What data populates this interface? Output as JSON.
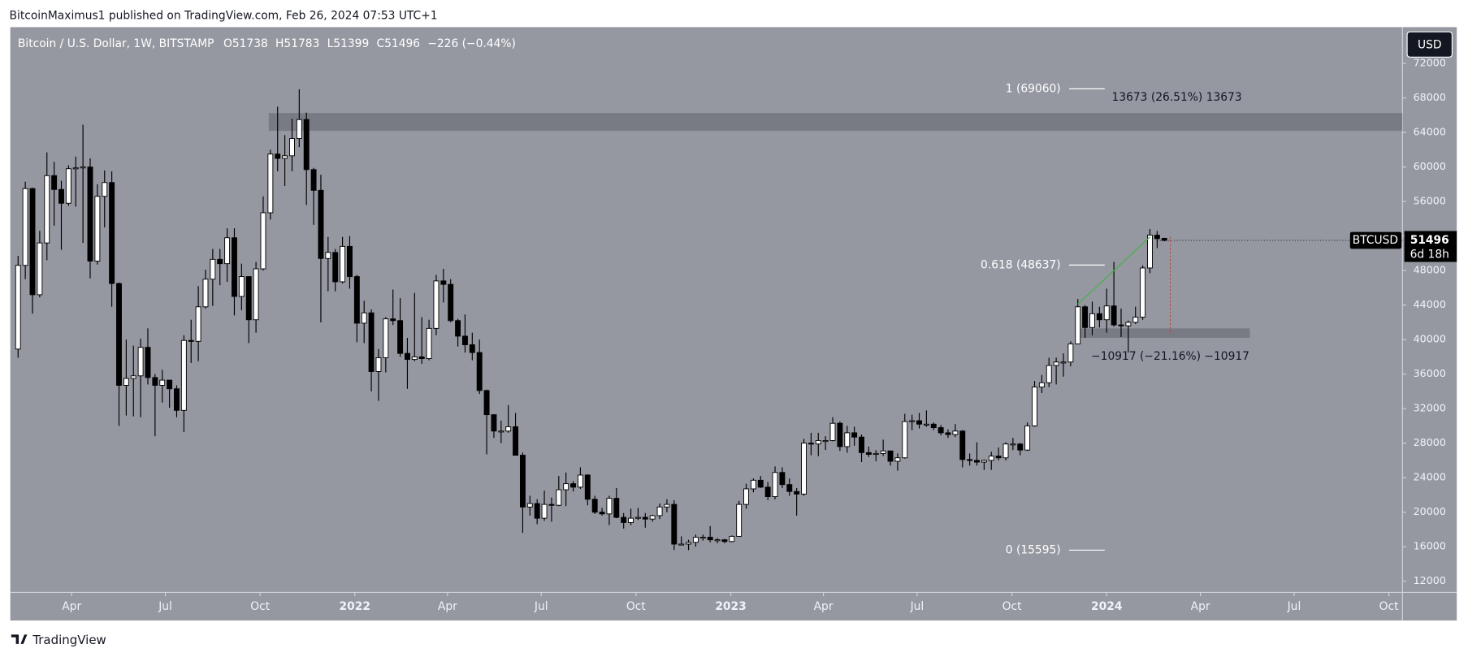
{
  "header": "BitcoinMaximus1 published on TradingView.com, Feb 26, 2024 07:53 UTC+1",
  "brand": "TradingView",
  "chart_data": {
    "type": "candlestick",
    "legend": {
      "title": "Bitcoin / U.S. Dollar, 1W, BITSTAMP",
      "labels": [
        "O",
        "H",
        "L",
        "C"
      ],
      "change": "−226 (−0.44%)"
    },
    "currency": "USD",
    "symbol": "BTCUSD",
    "countdown": "6d 18h",
    "up_color": "#ffffff",
    "down_color": "#000000",
    "grid": false,
    "xlim": [
      -0.95,
      192.03
    ],
    "xticks": [
      {
        "value": 7.43,
        "label": "Apr"
      },
      {
        "value": 20.43,
        "label": "Jul"
      },
      {
        "value": 33.57,
        "label": "Oct"
      },
      {
        "value": 46.71,
        "label": "2022"
      },
      {
        "value": 59.57,
        "label": "Apr"
      },
      {
        "value": 72.57,
        "label": "Jul"
      },
      {
        "value": 85.71,
        "label": "Oct"
      },
      {
        "value": 98.86,
        "label": "2023"
      },
      {
        "value": 111.71,
        "label": "Apr"
      },
      {
        "value": 124.71,
        "label": "Jul"
      },
      {
        "value": 137.86,
        "label": "Oct"
      },
      {
        "value": 151,
        "label": "2024"
      },
      {
        "value": 164,
        "label": "Apr"
      },
      {
        "value": 177,
        "label": "Jul"
      },
      {
        "value": 190.14,
        "label": "Oct"
      }
    ],
    "ylim": [
      10700,
      76100
    ],
    "yticks": [
      12000,
      16000,
      20000,
      24000,
      28000,
      32000,
      36000,
      40000,
      44000,
      48000,
      52000,
      56000,
      60000,
      64000,
      68000,
      72000
    ],
    "open": [
      38900,
      48600,
      57500,
      45200,
      51200,
      59000,
      57400,
      55800,
      59800,
      59900,
      60000,
      49100,
      56600,
      58200,
      46500,
      34700,
      35500,
      35800,
      39100,
      35600,
      34700,
      35300,
      34300,
      31800,
      39900,
      39800,
      43800,
      47000,
      49300,
      48800,
      51800,
      45000,
      47300,
      42300,
      48200,
      54700,
      61500,
      61000,
      61300,
      63300,
      65500,
      59700,
      57300,
      49400,
      50100,
      46700,
      50800,
      47300,
      41900,
      43100,
      36300,
      37900,
      42400,
      42200,
      38400,
      37700,
      38000,
      37800,
      41300,
      46800,
      46400,
      42200,
      40400,
      39400,
      38500,
      34100,
      31300,
      29400,
      29400,
      29900,
      26600,
      20600,
      21000,
      19300,
      20900,
      20800,
      22600,
      23300,
      22900,
      24300,
      21500,
      20000,
      19800,
      21600,
      19400,
      18800,
      19300,
      19400,
      19200,
      19600,
      20600,
      20900,
      16300,
      16300,
      16500,
      17100,
      17100,
      16800,
      16800,
      16600,
      17200,
      20900,
      22700,
      23700,
      22900,
      21800,
      24600,
      23200,
      22400,
      22100,
      28000,
      27900,
      28300,
      28300,
      30300,
      27600,
      29200,
      28700,
      26900,
      26700,
      26800,
      27100,
      25900,
      26300,
      30500,
      30600,
      30200,
      30200,
      29800,
      29200,
      29000,
      29400,
      26100,
      26000,
      25800,
      26000,
      26500,
      26300,
      27900,
      27900,
      27200,
      30000,
      34500,
      35000,
      37000,
      37400,
      37400,
      39500,
      43800,
      41400,
      43000,
      42300,
      43900,
      41700,
      41600,
      42000,
      42600,
      48300,
      52100,
      51738
    ],
    "high": [
      49700,
      58300,
      57600,
      52600,
      61700,
      60600,
      58400,
      60200,
      61200,
      64900,
      61000,
      58000,
      59600,
      59500,
      46600,
      40000,
      39300,
      40100,
      41300,
      36000,
      36500,
      35300,
      34700,
      40500,
      42300,
      46200,
      48100,
      50500,
      50500,
      52900,
      52900,
      48800,
      47300,
      49000,
      56600,
      62000,
      67000,
      63700,
      65600,
      69000,
      66300,
      59900,
      59100,
      51900,
      50500,
      51900,
      52000,
      47500,
      44500,
      43500,
      38900,
      42600,
      45800,
      44800,
      40200,
      45400,
      42600,
      42300,
      47500,
      48200,
      47000,
      42400,
      42900,
      40800,
      40000,
      34200,
      31300,
      30600,
      32400,
      31500,
      26900,
      21900,
      21500,
      22500,
      21700,
      24200,
      24600,
      23600,
      25200,
      24400,
      21900,
      20500,
      21900,
      22800,
      19900,
      20400,
      20500,
      19900,
      19700,
      21000,
      21500,
      21400,
      17200,
      16800,
      17400,
      17400,
      18400,
      17000,
      16900,
      17300,
      21300,
      23300,
      23900,
      24200,
      23500,
      25300,
      25200,
      23900,
      22800,
      28500,
      29200,
      29200,
      28800,
      31000,
      30500,
      30000,
      29900,
      29000,
      27600,
      27200,
      28400,
      27100,
      26800,
      31400,
      31300,
      31500,
      31800,
      30400,
      30100,
      29600,
      30200,
      29500,
      26800,
      28100,
      26100,
      27000,
      27500,
      28100,
      28600,
      28000,
      30400,
      35200,
      35900,
      37900,
      37900,
      38400,
      39800,
      44700,
      44000,
      44400,
      43800,
      45900,
      49000,
      43600,
      42200,
      43800,
      48600,
      52800,
      52600,
      51783
    ],
    "low": [
      37900,
      47000,
      43000,
      44900,
      49200,
      53200,
      50400,
      55500,
      55400,
      51200,
      47100,
      48700,
      53000,
      43800,
      30000,
      31200,
      31100,
      31000,
      34800,
      28800,
      32700,
      32100,
      31000,
      29300,
      37300,
      37500,
      43600,
      43900,
      46300,
      46700,
      42800,
      43400,
      39600,
      40800,
      48000,
      53900,
      59500,
      57800,
      59500,
      62300,
      55600,
      53300,
      42000,
      45600,
      45600,
      46500,
      45900,
      39700,
      39600,
      34000,
      32900,
      36200,
      41700,
      38000,
      34300,
      37500,
      37200,
      37600,
      40500,
      44300,
      42000,
      39200,
      38500,
      37600,
      33700,
      26700,
      28600,
      28000,
      29200,
      26600,
      17600,
      19600,
      18600,
      19000,
      18900,
      20700,
      20700,
      22400,
      22700,
      20800,
      19800,
      19600,
      18500,
      19300,
      18100,
      18500,
      19100,
      18200,
      18900,
      19200,
      20000,
      15600,
      16200,
      15600,
      16000,
      16700,
      16500,
      16400,
      16400,
      16500,
      17200,
      20400,
      22300,
      22800,
      21400,
      21500,
      22800,
      21900,
      19600,
      21900,
      26600,
      26500,
      27200,
      28200,
      27100,
      26900,
      27700,
      25800,
      26400,
      25900,
      26500,
      25400,
      24800,
      26200,
      29500,
      29700,
      29900,
      29500,
      28900,
      28600,
      28700,
      25200,
      25400,
      25400,
      24900,
      24900,
      26000,
      26000,
      27200,
      26600,
      27100,
      29900,
      33800,
      34500,
      34800,
      35700,
      36900,
      39500,
      40200,
      40500,
      41400,
      40800,
      41500,
      40300,
      38500,
      41800,
      42300,
      47700,
      50600,
      51399
    ],
    "close": [
      48600,
      57500,
      45200,
      51200,
      59000,
      57400,
      55800,
      59800,
      59900,
      60000,
      49100,
      56600,
      58200,
      46500,
      34700,
      35500,
      35800,
      39100,
      35600,
      34700,
      35300,
      34300,
      31800,
      39900,
      39800,
      43800,
      47000,
      49300,
      48800,
      51800,
      45000,
      47300,
      42300,
      48200,
      54700,
      61500,
      61000,
      61300,
      63300,
      65500,
      59700,
      57300,
      49400,
      50100,
      46700,
      50800,
      47300,
      41900,
      43100,
      36300,
      37900,
      42400,
      42200,
      38400,
      37700,
      38000,
      37800,
      41300,
      46800,
      46400,
      42200,
      40400,
      39400,
      38500,
      34100,
      31300,
      29400,
      29400,
      29900,
      26600,
      20600,
      21000,
      19300,
      20900,
      20800,
      22600,
      23300,
      22900,
      24300,
      21500,
      20000,
      19800,
      21600,
      19400,
      18800,
      19300,
      19400,
      19200,
      19600,
      20600,
      20900,
      16300,
      16300,
      16500,
      17100,
      17100,
      16800,
      16800,
      16600,
      17200,
      20900,
      22700,
      23700,
      22900,
      21800,
      24600,
      23200,
      22400,
      22100,
      28000,
      27900,
      28300,
      28300,
      30300,
      27600,
      29200,
      28700,
      26900,
      26700,
      26800,
      27100,
      25900,
      26300,
      30500,
      30600,
      30200,
      30200,
      29800,
      29200,
      29000,
      29400,
      26100,
      26000,
      25800,
      26000,
      26500,
      26300,
      27900,
      27900,
      27200,
      30000,
      34500,
      35000,
      37000,
      37400,
      37400,
      39500,
      43800,
      41400,
      43000,
      42300,
      43900,
      41700,
      41600,
      42000,
      42600,
      48300,
      52100,
      51700,
      51496
    ],
    "zones": [
      [
        64190,
        66250
      ],
      [
        40210,
        41300
      ]
    ],
    "fib_levels": [
      {
        "label": "1 (69060)",
        "value": 69060
      },
      {
        "label": "0.618 (48637)",
        "value": 48637
      },
      {
        "label": "0 (15595)",
        "value": 15595
      }
    ],
    "trendline": {
      "color": "#4caf50",
      "x": [
        147,
        157
      ],
      "values": [
        44100,
        51900
      ]
    },
    "measures": [
      "13673 (26.51%) 13673",
      "−10917 (−21.16%) −10917"
    ]
  }
}
